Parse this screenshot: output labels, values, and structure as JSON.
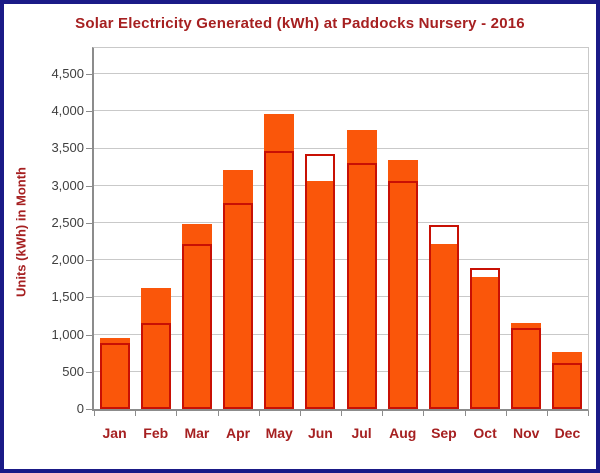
{
  "frame": {
    "border_color": "#1A1A87",
    "background": "#FFFFFF"
  },
  "chart_data": {
    "type": "bar",
    "title": "Solar Electricity Generated (kWh) at Paddocks Nursery - 2016",
    "title_color": "#A62021",
    "ylabel": "Units (kWh) in Month",
    "xlabel": "",
    "categories": [
      "Jan",
      "Feb",
      "Mar",
      "Apr",
      "May",
      "Jun",
      "Jul",
      "Aug",
      "Sep",
      "Oct",
      "Nov",
      "Dec"
    ],
    "series": [
      {
        "name": "orange-filled-bars",
        "style": "filled",
        "color": "#FA560A",
        "values": [
          950,
          1630,
          2480,
          3210,
          3960,
          3060,
          3750,
          3350,
          2220,
          1780,
          1150,
          770
        ]
      },
      {
        "name": "red-outline-bars",
        "style": "outline",
        "color": "#C81004",
        "values": [
          890,
          1150,
          2220,
          2770,
          3470,
          3430,
          3300,
          3060,
          2470,
          1890,
          1090,
          620
        ]
      }
    ],
    "ylim": [
      0,
      4500
    ],
    "yticks": {
      "values": [
        0,
        500,
        1000,
        1500,
        2000,
        2500,
        3000,
        3500,
        4000,
        4500
      ],
      "labels": [
        "0",
        "500",
        "1,000",
        "1,500",
        "2,000",
        "2,500",
        "3,000",
        "3,500",
        "4,000",
        "4,500"
      ]
    },
    "grid": true,
    "legend": "none",
    "axis_color": "#8C8C8C",
    "gridline_color": "#C9C9C9",
    "tick_label_color": "#3F3F3F",
    "category_label_color": "#A62021"
  }
}
